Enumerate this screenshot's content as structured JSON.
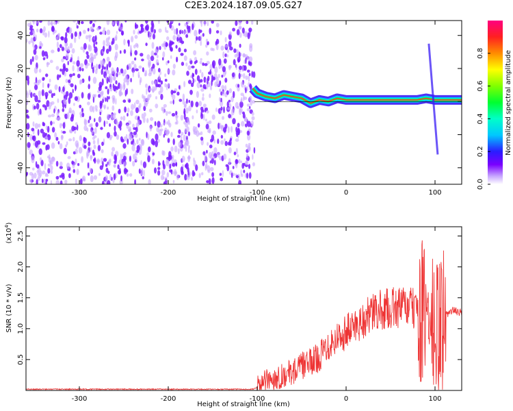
{
  "title": "C2E3.2024.187.09.05.G27",
  "colors": {
    "noise": "#7a1cff",
    "noise_light": "#c9a6ff",
    "trace": "#ee3333",
    "band_dark": "#3a1cf5"
  },
  "chart_data": [
    {
      "type": "heatmap",
      "xlabel": "Height of straight line (km)",
      "ylabel": "Frequency (Hz)",
      "xlim": [
        -360,
        130
      ],
      "ylim": [
        -50,
        49
      ],
      "x_ticks": [
        "-300",
        "-200",
        "-100",
        "0",
        "100"
      ],
      "y_ticks": [
        "-40",
        "-20",
        "0",
        "20",
        "40"
      ],
      "noise_region_x": [
        -360,
        -103
      ],
      "signal_ridge": {
        "x": [
          -105,
          -100,
          -90,
          -80,
          -70,
          -60,
          -50,
          -40,
          -30,
          -20,
          -10,
          0,
          20,
          40,
          60,
          80,
          90,
          100,
          110,
          130
        ],
        "freq": [
          8,
          5,
          3,
          2,
          4,
          3,
          2,
          -1,
          1,
          0,
          2,
          1,
          1,
          1,
          1,
          1,
          2,
          1,
          1,
          1
        ]
      },
      "colorbar": {
        "label": "Normalized spectral amplitude",
        "range": [
          0,
          1
        ],
        "ticks": [
          "0.0",
          "0.2",
          "0.4",
          "0.6",
          "0.8"
        ]
      }
    },
    {
      "type": "line",
      "xlabel": "Height of straight line (km)",
      "ylabel": "SNR (10 * v/v)",
      "scale_label": "(x10",
      "scale_exp": "4",
      "scale_close": ")",
      "xlim": [
        -360,
        130
      ],
      "ylim": [
        0,
        2.65
      ],
      "x_ticks": [
        "-300",
        "-200",
        "-100",
        "0",
        "100"
      ],
      "y_ticks": [
        "0.5",
        "1.0",
        "1.5",
        "2.0",
        "2.5"
      ],
      "series": [
        {
          "x": [
            -360,
            -200,
            -105,
            -100,
            -90,
            -80,
            -70,
            -60,
            -50,
            -40,
            -30,
            -20,
            -10,
            0,
            10,
            20,
            30,
            40,
            50,
            60,
            70,
            80,
            90,
            95,
            100,
            105,
            110,
            120,
            130
          ],
          "y": [
            0.02,
            0.02,
            0.02,
            0.05,
            0.15,
            0.2,
            0.25,
            0.3,
            0.4,
            0.45,
            0.55,
            0.75,
            0.85,
            0.95,
            1.05,
            1.15,
            1.25,
            1.3,
            1.33,
            1.35,
            1.35,
            1.3,
            1.2,
            1.1,
            0.9,
            1.0,
            1.2,
            1.3,
            1.25
          ]
        }
      ]
    }
  ]
}
